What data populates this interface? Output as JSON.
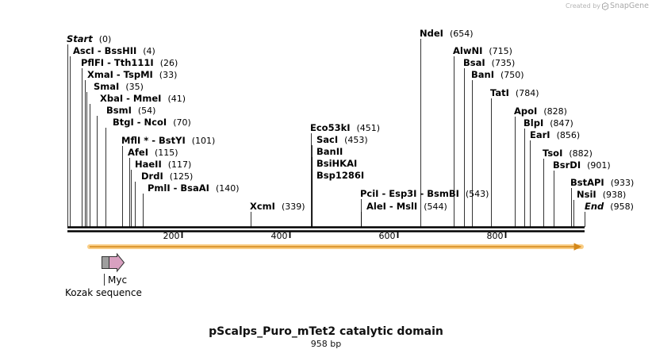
{
  "watermark": {
    "prefix": "Created by",
    "brand": "SnapGene",
    "icon": "snapgene-logo-icon"
  },
  "map": {
    "title": "pScalps_Puro_mTet2 catalytic domain",
    "length_label": "958 bp",
    "length_bp": 958,
    "tick_labels": [
      {
        "bp": 200,
        "label": "200"
      },
      {
        "bp": 400,
        "label": "400"
      },
      {
        "bp": 600,
        "label": "600"
      },
      {
        "bp": 800,
        "label": "800"
      }
    ]
  },
  "sites": [
    {
      "bp": 0,
      "enzymes": [
        "Start"
      ],
      "pos": "(0)",
      "italic": true
    },
    {
      "bp": 4,
      "enzymes": [
        "AscI",
        "BssHII"
      ],
      "pos": "(4)"
    },
    {
      "bp": 26,
      "enzymes": [
        "PflFI",
        "Tth111I"
      ],
      "pos": "(26)"
    },
    {
      "bp": 33,
      "enzymes": [
        "XmaI",
        "TspMI"
      ],
      "pos": "(33)"
    },
    {
      "bp": 35,
      "enzymes": [
        "SmaI"
      ],
      "pos": "(35)"
    },
    {
      "bp": 41,
      "enzymes": [
        "XbaI",
        "MmeI"
      ],
      "pos": "(41)"
    },
    {
      "bp": 54,
      "enzymes": [
        "BsmI"
      ],
      "pos": "(54)"
    },
    {
      "bp": 70,
      "enzymes": [
        "BtgI",
        "NcoI"
      ],
      "pos": "(70)"
    },
    {
      "bp": 101,
      "enzymes": [
        "MflI *",
        "BstYI"
      ],
      "pos": "(101)"
    },
    {
      "bp": 115,
      "enzymes": [
        "AfeI"
      ],
      "pos": "(115)"
    },
    {
      "bp": 117,
      "enzymes": [
        "HaeII"
      ],
      "pos": "(117)"
    },
    {
      "bp": 125,
      "enzymes": [
        "DrdI"
      ],
      "pos": "(125)"
    },
    {
      "bp": 140,
      "enzymes": [
        "PmlI",
        "BsaAI"
      ],
      "pos": "(140)"
    },
    {
      "bp": 339,
      "enzymes": [
        "XcmI"
      ],
      "pos": "(339)"
    },
    {
      "bp": 451,
      "enzymes": [
        "Eco53kI"
      ],
      "pos": "(451)"
    },
    {
      "bp": 453,
      "enzymes": [
        "SacI"
      ],
      "pos": "(453)"
    },
    {
      "bp": 453,
      "enzymes": [
        "BanII"
      ],
      "pos": ""
    },
    {
      "bp": 453,
      "enzymes": [
        "BsiHKAI"
      ],
      "pos": ""
    },
    {
      "bp": 453,
      "enzymes": [
        "Bsp1286I"
      ],
      "pos": ""
    },
    {
      "bp": 543,
      "enzymes": [
        "PciI",
        "Esp3I",
        "BsmBI"
      ],
      "pos": "(543)"
    },
    {
      "bp": 544,
      "enzymes": [
        "AleI",
        "MslI"
      ],
      "pos": "(544)"
    },
    {
      "bp": 654,
      "enzymes": [
        "NdeI"
      ],
      "pos": "(654)"
    },
    {
      "bp": 715,
      "enzymes": [
        "AlwNI"
      ],
      "pos": "(715)"
    },
    {
      "bp": 735,
      "enzymes": [
        "BsaI"
      ],
      "pos": "(735)"
    },
    {
      "bp": 750,
      "enzymes": [
        "BanI"
      ],
      "pos": "(750)"
    },
    {
      "bp": 784,
      "enzymes": [
        "TatI"
      ],
      "pos": "(784)"
    },
    {
      "bp": 828,
      "enzymes": [
        "ApoI"
      ],
      "pos": "(828)"
    },
    {
      "bp": 847,
      "enzymes": [
        "BlpI"
      ],
      "pos": "(847)"
    },
    {
      "bp": 856,
      "enzymes": [
        "EarI"
      ],
      "pos": "(856)"
    },
    {
      "bp": 882,
      "enzymes": [
        "TsoI"
      ],
      "pos": "(882)"
    },
    {
      "bp": 901,
      "enzymes": [
        "BsrDI"
      ],
      "pos": "(901)"
    },
    {
      "bp": 933,
      "enzymes": [
        "BstAPI"
      ],
      "pos": "(933)"
    },
    {
      "bp": 938,
      "enzymes": [
        "NsiI"
      ],
      "pos": "(938)"
    },
    {
      "bp": 958,
      "enzymes": [
        "End"
      ],
      "pos": "(958)",
      "italic": true
    }
  ],
  "features": {
    "orf": {
      "start_bp": 70,
      "end_bp": 958,
      "color": "#f5a623",
      "line_color": "#d4881a"
    },
    "kozak": {
      "label": "Kozak sequence",
      "start_bp": 64,
      "end_bp": 70,
      "color": "#9e9e9e"
    },
    "myc": {
      "label": "Myc",
      "start_bp": 70,
      "end_bp": 101,
      "color": "#d8a0c0"
    }
  },
  "colors": {
    "backbone": "#000000",
    "leader": "#000000",
    "label": "#000000"
  }
}
